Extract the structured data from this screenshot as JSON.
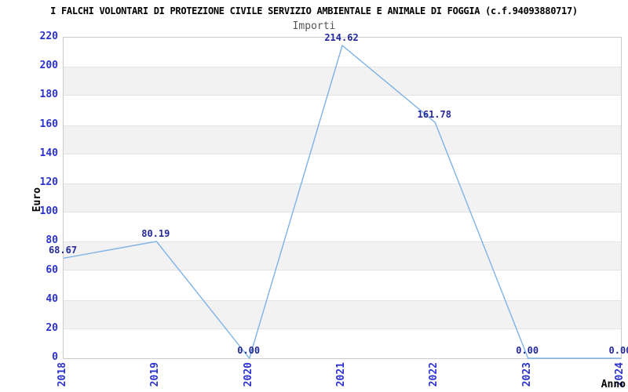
{
  "header": {
    "title": "I FALCHI VOLONTARI DI PROTEZIONE CIVILE SERVIZIO AMBIENTALE E ANIMALE DI FOGGIA (c.f.94093880717)",
    "subtitle": "Importi"
  },
  "chart_data": {
    "type": "line",
    "title": "Importi",
    "xlabel": "Anno",
    "ylabel": "Euro",
    "categories": [
      "2018",
      "2019",
      "2020",
      "2021",
      "2022",
      "2023",
      "2024"
    ],
    "values": [
      68.67,
      80.19,
      0.0,
      214.62,
      161.78,
      0.0,
      0.0
    ],
    "point_labels": [
      "68.67",
      "80.19",
      "0.00",
      "214.62",
      "161.78",
      "0.00",
      "0.00"
    ],
    "ylim": [
      0,
      220
    ],
    "yticks": [
      0,
      20,
      40,
      60,
      80,
      100,
      120,
      140,
      160,
      180,
      200,
      220
    ],
    "grid": "alternating-horizontal-bands",
    "band_ranges": [
      [
        20,
        40
      ],
      [
        60,
        80
      ],
      [
        100,
        120
      ],
      [
        140,
        160
      ],
      [
        180,
        200
      ]
    ],
    "legend": "none",
    "colors": {
      "line": "#7fb2e6",
      "tick_label": "#2b32cf",
      "point_label": "#23299c",
      "title": "#000000",
      "subtitle": "#555555",
      "band": "#f2f2f2",
      "band_border": "#e3e3e3",
      "plot_border": "#cccccc",
      "background": "#ffffff"
    }
  }
}
